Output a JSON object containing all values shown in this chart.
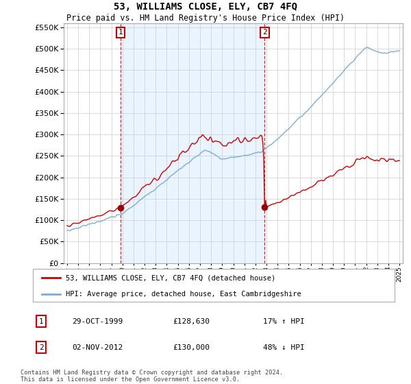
{
  "title": "53, WILLIAMS CLOSE, ELY, CB7 4FQ",
  "subtitle": "Price paid vs. HM Land Registry's House Price Index (HPI)",
  "legend_line1": "53, WILLIAMS CLOSE, ELY, CB7 4FQ (detached house)",
  "legend_line2": "HPI: Average price, detached house, East Cambridgeshire",
  "sale1_date": "29-OCT-1999",
  "sale1_price": "£128,630",
  "sale1_hpi": "17% ↑ HPI",
  "sale2_date": "02-NOV-2012",
  "sale2_price": "£130,000",
  "sale2_hpi": "48% ↓ HPI",
  "sale1_year": 1999.83,
  "sale1_value": 128630,
  "sale2_year": 2012.84,
  "sale2_value": 130000,
  "ylim_min": 0,
  "ylim_max": 560000,
  "line_color_price": "#cc0000",
  "line_color_hpi": "#7aaed6",
  "vline_color": "#cc0000",
  "marker_color": "#990000",
  "shade_color": "#ddeeff",
  "background_color": "#ffffff",
  "grid_color": "#cccccc",
  "footnote": "Contains HM Land Registry data © Crown copyright and database right 2024.\nThis data is licensed under the Open Government Licence v3.0."
}
